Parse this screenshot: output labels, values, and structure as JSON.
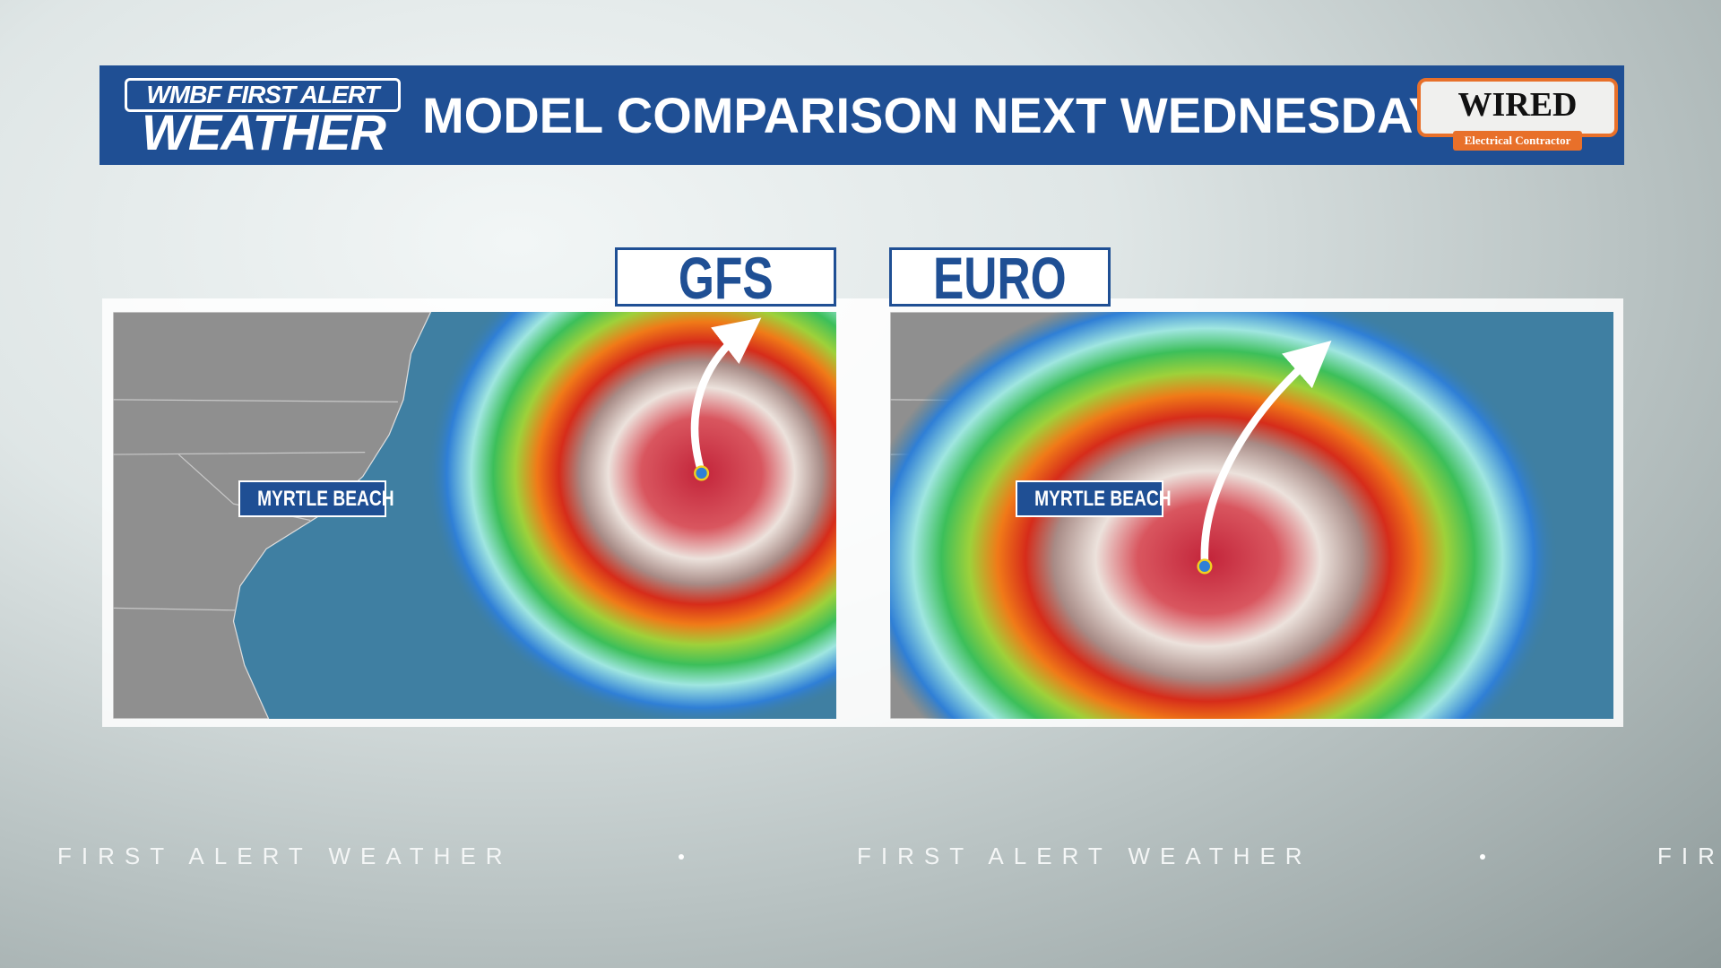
{
  "header": {
    "logo_top": "WMBF FIRST ALERT",
    "logo_bottom": "WEATHER",
    "title": "MODEL COMPARISON NEXT WEDNESDAY"
  },
  "sponsor": {
    "name": "WIRED",
    "tagline": "Electrical Contractor"
  },
  "panels": [
    {
      "label": "GFS",
      "city_label": "MYRTLE BEACH"
    },
    {
      "label": "EURO",
      "city_label": "MYRTLE BEACH"
    }
  ],
  "ticker": {
    "text": "FIRST ALERT WEATHER"
  }
}
